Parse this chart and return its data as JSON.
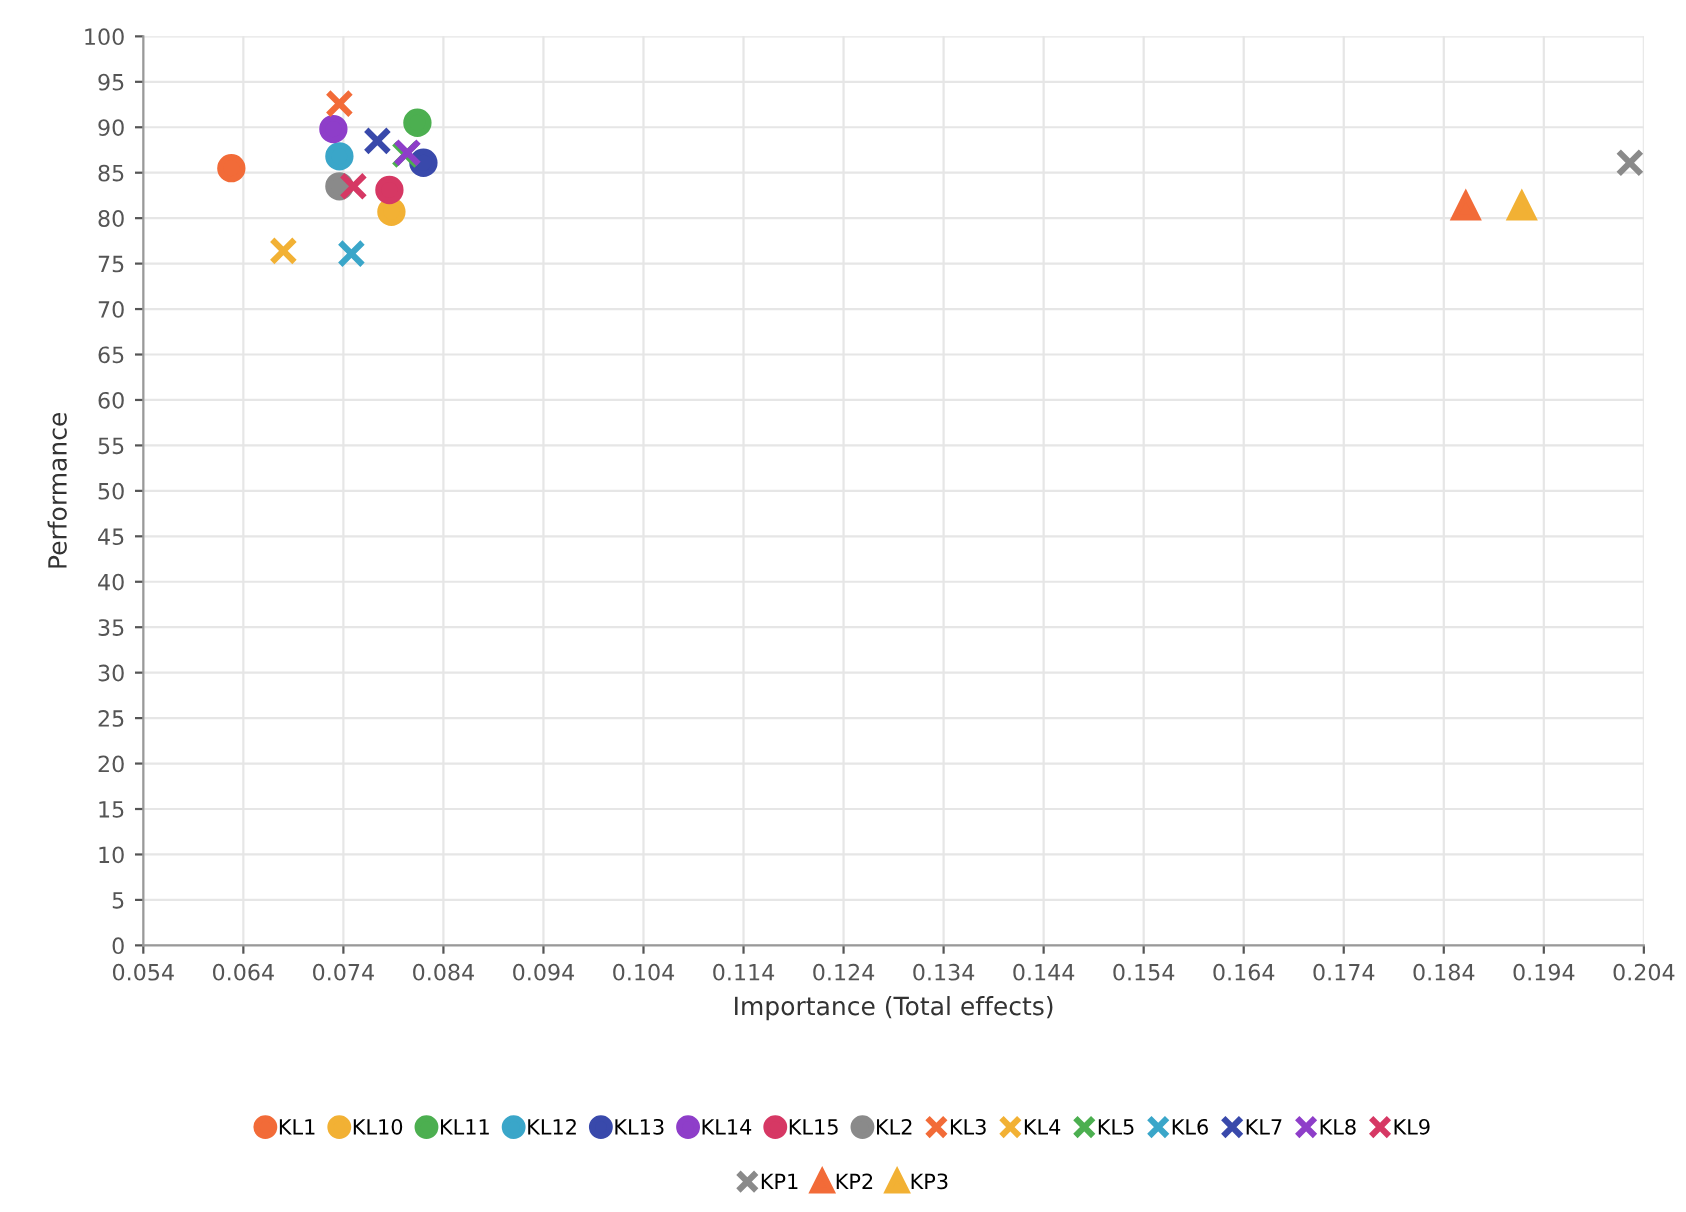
{
  "chart_data": {
    "type": "scatter",
    "xlabel": "Importance (Total effects)",
    "ylabel": "Performance",
    "xlim": [
      0.054,
      0.204
    ],
    "xticks": [
      {
        "value": 0.054,
        "label": "0.054"
      },
      {
        "value": 0.064,
        "label": "0.064"
      },
      {
        "value": 0.074,
        "label": "0.074"
      },
      {
        "value": 0.084,
        "label": "0.084"
      },
      {
        "value": 0.094,
        "label": "0.094"
      },
      {
        "value": 0.104,
        "label": "0.104"
      },
      {
        "value": 0.114,
        "label": "0.114"
      },
      {
        "value": 0.124,
        "label": "0.124"
      },
      {
        "value": 0.134,
        "label": "0.134"
      },
      {
        "value": 0.144,
        "label": "0.144"
      },
      {
        "value": 0.154,
        "label": "0.154"
      },
      {
        "value": 0.164,
        "label": "0.164"
      },
      {
        "value": 0.174,
        "label": "0.174"
      },
      {
        "value": 0.184,
        "label": "0.184"
      },
      {
        "value": 0.194,
        "label": "0.194"
      },
      {
        "value": 0.204,
        "label": "0.204"
      }
    ],
    "ylim": [
      0,
      100
    ],
    "yticks": [
      0,
      5,
      10,
      15,
      20,
      25,
      30,
      35,
      40,
      45,
      50,
      55,
      60,
      65,
      70,
      75,
      80,
      85,
      90,
      95,
      100
    ],
    "grid": true,
    "legend": "bottom",
    "series": [
      {
        "name": "KL1",
        "color": "#f26b38",
        "marker": "circle",
        "x": [
          0.0628
        ],
        "values": [
          85.5
        ]
      },
      {
        "name": "KL10",
        "color": "#f2b134",
        "marker": "circle",
        "x": [
          0.0788
        ],
        "values": [
          80.7
        ]
      },
      {
        "name": "KL11",
        "color": "#4caf50",
        "marker": "circle",
        "x": [
          0.0814
        ],
        "values": [
          90.5
        ]
      },
      {
        "name": "KL12",
        "color": "#3aa6c9",
        "marker": "circle",
        "x": [
          0.0736
        ],
        "values": [
          86.8
        ]
      },
      {
        "name": "KL13",
        "color": "#3949ab",
        "marker": "circle",
        "x": [
          0.082
        ],
        "values": [
          86.1
        ]
      },
      {
        "name": "KL14",
        "color": "#8e3ec9",
        "marker": "circle",
        "x": [
          0.073
        ],
        "values": [
          89.8
        ]
      },
      {
        "name": "KL15",
        "color": "#d63864",
        "marker": "circle",
        "x": [
          0.0786
        ],
        "values": [
          83.1
        ]
      },
      {
        "name": "KL2",
        "color": "#8a8a8a",
        "marker": "circle",
        "x": [
          0.0736
        ],
        "values": [
          83.5
        ]
      },
      {
        "name": "KL3",
        "color": "#f26b38",
        "marker": "cross",
        "x": [
          0.0736
        ],
        "values": [
          92.6
        ]
      },
      {
        "name": "KL4",
        "color": "#f2b134",
        "marker": "cross",
        "x": [
          0.068
        ],
        "values": [
          76.4
        ]
      },
      {
        "name": "KL5",
        "color": "#4caf50",
        "marker": "cross",
        "x": [
          0.0802
        ],
        "values": [
          87.0
        ]
      },
      {
        "name": "KL6",
        "color": "#3aa6c9",
        "marker": "cross",
        "x": [
          0.0748
        ],
        "values": [
          76.1
        ]
      },
      {
        "name": "KL7",
        "color": "#3949ab",
        "marker": "cross",
        "x": [
          0.0774
        ],
        "values": [
          88.5
        ]
      },
      {
        "name": "KL8",
        "color": "#8e3ec9",
        "marker": "cross",
        "x": [
          0.0804
        ],
        "values": [
          87.2
        ]
      },
      {
        "name": "KL9",
        "color": "#d63864",
        "marker": "cross",
        "x": [
          0.075
        ],
        "values": [
          83.5
        ]
      },
      {
        "name": "KP1",
        "color": "#8a8a8a",
        "marker": "cross",
        "x": [
          0.2026
        ],
        "values": [
          86.1
        ]
      },
      {
        "name": "KP2",
        "color": "#f26b38",
        "marker": "triangle",
        "x": [
          0.1862
        ],
        "values": [
          81.3
        ]
      },
      {
        "name": "KP3",
        "color": "#f2b134",
        "marker": "triangle",
        "x": [
          0.1918
        ],
        "values": [
          81.3
        ]
      }
    ]
  }
}
